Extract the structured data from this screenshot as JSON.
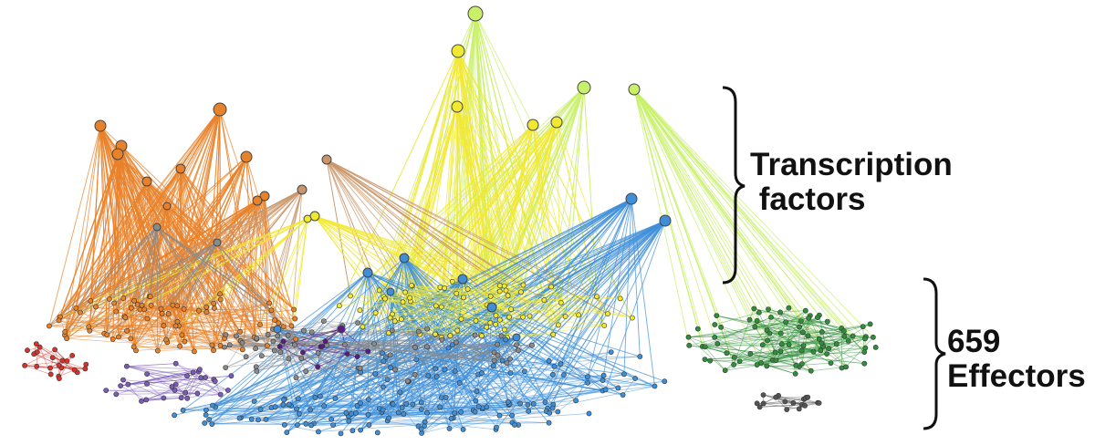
{
  "labels": {
    "transcription_factors_line1": "Transcription",
    "transcription_factors_line2": " factors",
    "effectors_count": "659",
    "effectors_word": "Effectors"
  },
  "colors": {
    "orange": "#e8822a",
    "tan": "#c9956a",
    "yellow": "#f1e832",
    "lime": "#c8f06a",
    "lightgreen": "#a9e87a",
    "green": "#2f8f3a",
    "blue": "#3f8fd8",
    "purple": "#7a5bb5",
    "darkpurple": "#5a1a8a",
    "red": "#d8332a",
    "gray": "#8a8a8a",
    "darkgray": "#555555"
  }
}
